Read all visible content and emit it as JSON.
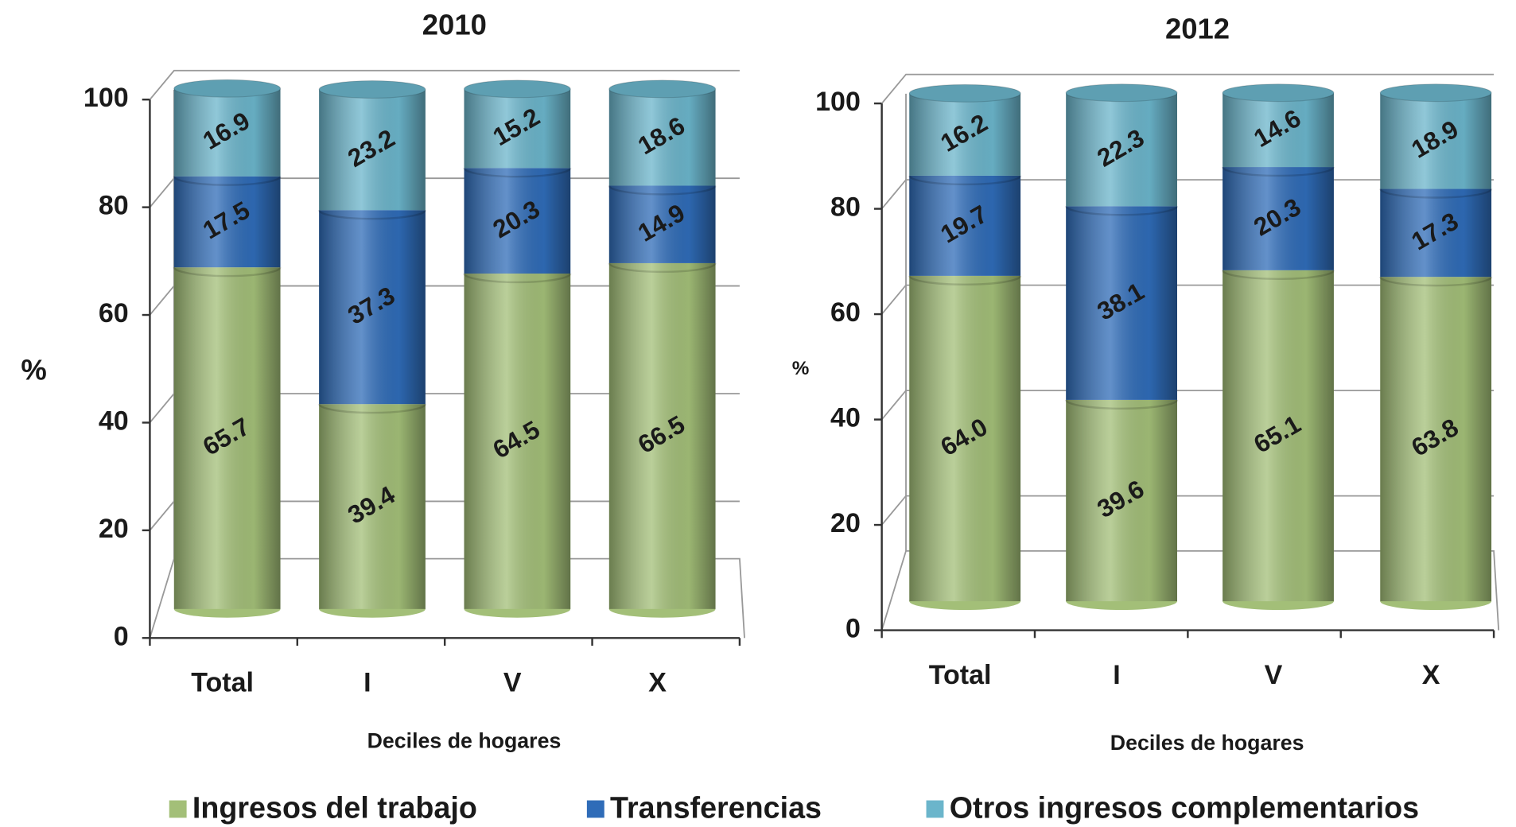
{
  "legend": {
    "items": [
      {
        "name": "Ingresos del trabajo",
        "color": "#a3bf78"
      },
      {
        "name": "Transferencias",
        "color": "#2f6cb8"
      },
      {
        "name": "Otros ingresos complementarios",
        "color": "#6bb5cb"
      }
    ]
  },
  "chart_data": [
    {
      "type": "bar",
      "stacked": true,
      "title": "2010",
      "y_label": "%",
      "x_label": "Deciles de hogares",
      "categories": [
        "Total",
        "I",
        "V",
        "X"
      ],
      "series": [
        {
          "color": "#a3bf78",
          "values": [
            65.7,
            39.4,
            64.5,
            66.5
          ]
        },
        {
          "color": "#2f6cb8",
          "values": [
            17.5,
            37.3,
            20.3,
            14.9
          ]
        },
        {
          "color": "#6bb5cb",
          "values": [
            16.9,
            23.2,
            15.2,
            18.6
          ]
        }
      ],
      "ylim": [
        0,
        100
      ],
      "yticks": [
        0,
        20,
        40,
        60,
        80,
        100
      ],
      "grid": true
    },
    {
      "type": "bar",
      "stacked": true,
      "title": "2012",
      "y_label": "%",
      "x_label": "Deciles de hogares",
      "categories": [
        "Total",
        "I",
        "V",
        "X"
      ],
      "series": [
        {
          "color": "#a3bf78",
          "values": [
            64.0,
            39.6,
            65.1,
            63.8
          ],
          "value_labels": [
            "64.0",
            "39.6",
            "65.1",
            "63.8"
          ]
        },
        {
          "color": "#2f6cb8",
          "values": [
            19.7,
            38.1,
            20.3,
            17.3
          ]
        },
        {
          "color": "#6bb5cb",
          "values": [
            16.2,
            22.3,
            14.6,
            18.9
          ]
        }
      ],
      "ylim": [
        0,
        100
      ],
      "yticks": [
        0,
        20,
        40,
        60,
        80,
        100
      ],
      "grid": true
    }
  ]
}
